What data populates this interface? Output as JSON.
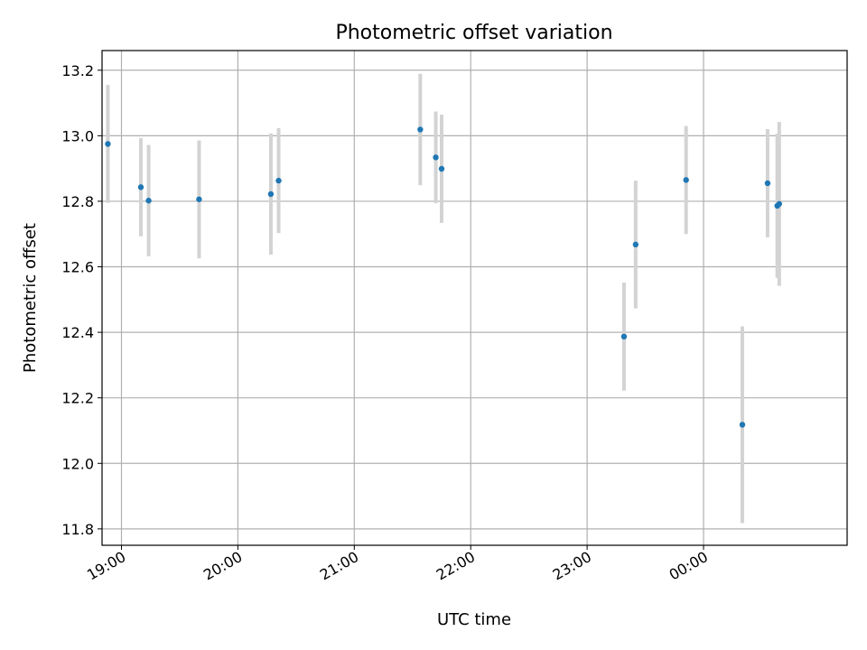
{
  "chart_data": {
    "type": "scatter",
    "title": "Photometric offset variation",
    "xlabel": "UTC time",
    "ylabel": "Photometric offset",
    "x_tick_labels": [
      "19:00",
      "20:00",
      "21:00",
      "22:00",
      "23:00",
      "00:00"
    ],
    "x_ticks_time": [
      "19:00",
      "20:00",
      "21:00",
      "22:00",
      "23:00",
      "24:00"
    ],
    "xlim_time": [
      "18:53",
      "25:14"
    ],
    "y_ticks": [
      11.8,
      12.0,
      12.2,
      12.4,
      12.6,
      12.8,
      13.0,
      13.2
    ],
    "ylim": [
      11.75,
      13.26
    ],
    "grid": true,
    "point_color": "#1f77b4",
    "errorbar_color": "#d3d3d3",
    "series": [
      {
        "points": [
          {
            "t": "18:53",
            "y": 12.975,
            "err": 0.18
          },
          {
            "t": "19:10",
            "y": 12.843,
            "err": 0.15
          },
          {
            "t": "19:14",
            "y": 12.802,
            "err": 0.17
          },
          {
            "t": "19:40",
            "y": 12.806,
            "err": 0.18
          },
          {
            "t": "20:17",
            "y": 12.822,
            "err": 0.185
          },
          {
            "t": "20:21",
            "y": 12.863,
            "err": 0.16
          },
          {
            "t": "21:34",
            "y": 13.019,
            "err": 0.17
          },
          {
            "t": "21:42",
            "y": 12.934,
            "err": 0.14
          },
          {
            "t": "21:45",
            "y": 12.899,
            "err": 0.165
          },
          {
            "t": "23:19",
            "y": 12.387,
            "err": 0.165
          },
          {
            "t": "23:25",
            "y": 12.668,
            "err": 0.195
          },
          {
            "t": "23:51",
            "y": 12.865,
            "err": 0.165
          },
          {
            "t": "24:20",
            "y": 12.118,
            "err": 0.3
          },
          {
            "t": "24:33",
            "y": 12.855,
            "err": 0.165
          },
          {
            "t": "24:38",
            "y": 12.786,
            "err": 0.22
          },
          {
            "t": "24:39",
            "y": 12.792,
            "err": 0.25
          }
        ]
      }
    ]
  }
}
